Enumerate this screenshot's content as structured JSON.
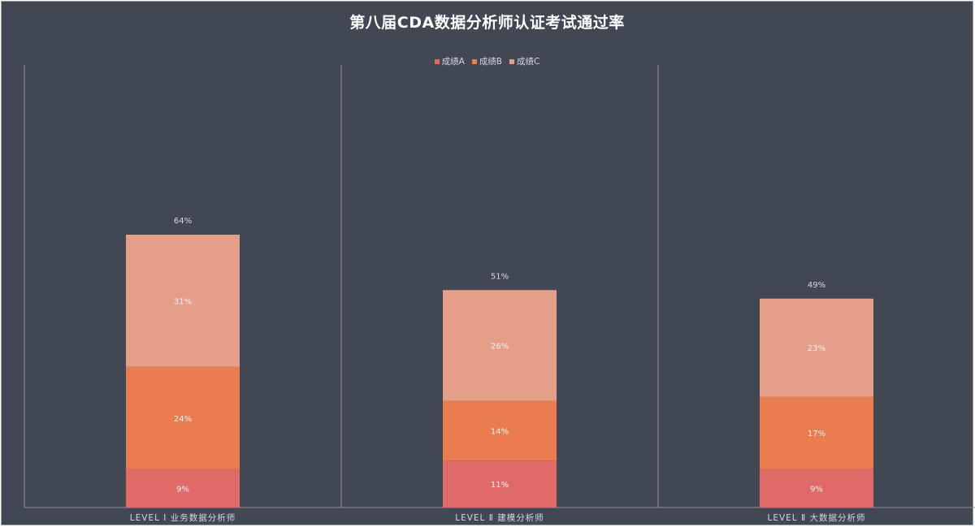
{
  "chart_data": {
    "type": "bar",
    "stacked": true,
    "title": "第八届CDA数据分析师认证考试通过率",
    "categories": [
      "LEVEL Ⅰ 业务数据分析师",
      "LEVEL Ⅱ 建模分析师",
      "LEVEL Ⅱ 大数据分析师"
    ],
    "series": [
      {
        "name": "成绩A",
        "color": "#e06a67",
        "values": [
          9,
          11,
          9
        ],
        "labels": [
          "9%",
          "11%",
          "9%"
        ]
      },
      {
        "name": "成绩B",
        "color": "#e97d50",
        "values": [
          24,
          14,
          17
        ],
        "labels": [
          "24%",
          "14%",
          "17%"
        ]
      },
      {
        "name": "成绩C",
        "color": "#e59e87",
        "values": [
          31,
          26,
          23
        ],
        "labels": [
          "31%",
          "26%",
          "23%"
        ]
      }
    ],
    "totals": [
      64,
      51,
      49
    ],
    "total_labels": [
      "64%",
      "51%",
      "49%"
    ],
    "ylim": [
      0,
      100
    ],
    "unit": "%",
    "legend_position": "top-center",
    "grid": false,
    "category_separators": true
  },
  "style": {
    "background": "#424754",
    "axis_color": "#8a8f99",
    "label_color": "#d5d8de",
    "bar_label_color": "#f2f2f2"
  }
}
